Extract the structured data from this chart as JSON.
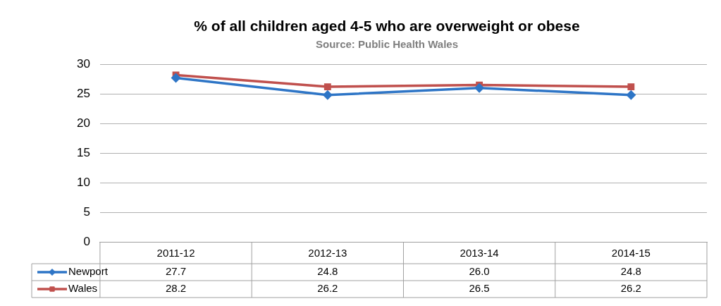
{
  "chart_data": {
    "type": "line",
    "title": "% of all children aged 4-5 who are overweight or obese",
    "subtitle": "Source: Public Health Wales",
    "categories": [
      "2011-12",
      "2012-13",
      "2013-14",
      "2014-15"
    ],
    "series": [
      {
        "name": "Newport",
        "color": "#2e75c6",
        "marker": "diamond",
        "values": [
          27.7,
          24.8,
          26.0,
          24.8
        ],
        "value_labels": [
          "27.7",
          "24.8",
          "26.0",
          "24.8"
        ]
      },
      {
        "name": "Wales",
        "color": "#c0504d",
        "marker": "square",
        "values": [
          28.2,
          26.2,
          26.5,
          26.2
        ],
        "value_labels": [
          "28.2",
          "26.2",
          "26.5",
          "26.2"
        ]
      }
    ],
    "ylim": [
      0,
      30
    ],
    "yticks": [
      0,
      5,
      10,
      15,
      20,
      25,
      30
    ],
    "grid": "y",
    "legend": "bottom",
    "line_style": "solid"
  }
}
